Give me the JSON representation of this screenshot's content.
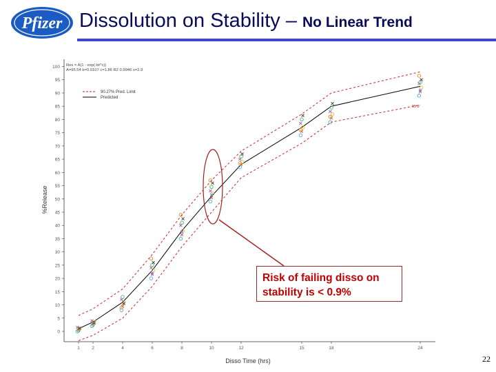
{
  "header": {
    "logo_text": "Pfizer",
    "title_main": "Dissolution on Stability",
    "title_dash": " – ",
    "title_sub": "No Linear Trend",
    "accent_color": "#0a0a5c",
    "logo_color": "#1a5bc4"
  },
  "callout": {
    "line1": "Risk of failing disso on",
    "line2": "stability is < 0.9%",
    "color": "#c00000"
  },
  "page_number": "22",
  "chart_data": {
    "type": "scatter",
    "title": "",
    "xlabel": "Disso Time (hrs)",
    "ylabel": "%Release",
    "x_ticks": [
      1,
      2,
      4,
      6,
      8,
      10,
      12,
      15,
      18,
      24
    ],
    "y_ticks": [
      0,
      5,
      10,
      15,
      20,
      25,
      30,
      35,
      40,
      45,
      50,
      55,
      60,
      65,
      70,
      75,
      80,
      85,
      90,
      95,
      100
    ],
    "ylim": [
      -5,
      102
    ],
    "grid": false,
    "legend_position": "top-left",
    "legend": [
      {
        "name": "90.27% Pred. Limit",
        "style": "dashed",
        "color": "#cc2222"
      },
      {
        "name": "Predicted",
        "style": "solid",
        "color": "#000000"
      }
    ],
    "equation_lines": [
      "Res = A(1 - exp(-bt^c))",
      "A=95.54 b=0.0107 c=1.86 R2 0.9946 s=2.9"
    ],
    "annotation": "95.8",
    "predicted": {
      "x": [
        1,
        2,
        4,
        6,
        8,
        10,
        12,
        15,
        18,
        24
      ],
      "y": [
        1,
        3.5,
        11,
        23,
        38,
        51,
        63,
        77,
        85,
        92.5
      ]
    },
    "upper_limit": {
      "x": [
        1,
        2,
        4,
        6,
        8,
        10,
        12,
        15,
        18,
        24
      ],
      "y": [
        6,
        8.5,
        16,
        29,
        44,
        57,
        68,
        82,
        90,
        98
      ]
    },
    "lower_limit": {
      "x": [
        1,
        2,
        4,
        6,
        8,
        10,
        12,
        15,
        18,
        24
      ],
      "y": [
        -3.5,
        -1.5,
        5,
        17,
        32,
        45,
        58,
        71,
        79,
        85.5
      ]
    },
    "observations": [
      {
        "x": 1,
        "y": [
          0,
          0.5,
          1,
          1.5,
          0.3,
          1.2
        ]
      },
      {
        "x": 2,
        "y": [
          2,
          2.8,
          3.5,
          4,
          2.5,
          3.2
        ]
      },
      {
        "x": 4,
        "y": [
          8,
          9.5,
          11,
          12,
          13,
          10.5,
          9
        ]
      },
      {
        "x": 6,
        "y": [
          20,
          21.5,
          23,
          24,
          25,
          26,
          27.5,
          22
        ]
      },
      {
        "x": 8,
        "y": [
          35,
          36.5,
          38,
          40,
          41,
          42.5,
          44,
          37.5
        ]
      },
      {
        "x": 10,
        "y": [
          49,
          50.5,
          52,
          53,
          54.5,
          56,
          57,
          51.5
        ]
      },
      {
        "x": 12,
        "y": [
          62,
          63,
          64,
          65,
          66,
          67,
          63.5
        ]
      },
      {
        "x": 15,
        "y": [
          74,
          75.5,
          77,
          78.5,
          80,
          81.5,
          76
        ]
      },
      {
        "x": 18,
        "y": [
          79,
          80.5,
          82,
          83,
          84.5,
          86,
          81
        ]
      },
      {
        "x": 24,
        "y": [
          89,
          90.5,
          92,
          93.5,
          94,
          95,
          96.5,
          91
        ]
      }
    ]
  }
}
